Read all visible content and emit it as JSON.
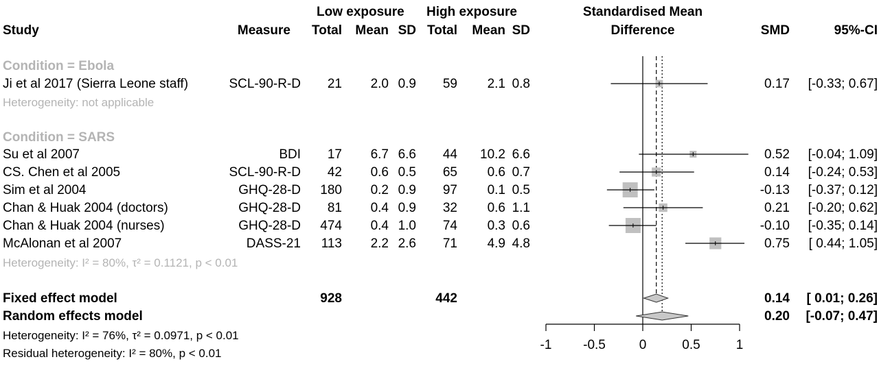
{
  "header": {
    "study": "Study",
    "measure": "Measure",
    "low_exposure": "Low exposure",
    "high_exposure": "High exposure",
    "total_low": "Total",
    "mean_low": "Mean",
    "sd_low": "SD",
    "total_high": "Total",
    "mean_high": "Mean",
    "sd_high": "SD",
    "smd_title_1": "Standardised Mean",
    "smd_title_2": "Difference",
    "smd": "SMD",
    "ci": "95%-CI"
  },
  "groups": [
    {
      "label": "Condition = Ebola",
      "heterogeneity": "Heterogeneity: not applicable",
      "studies": [
        {
          "study": "Ji et al 2017 (Sierra Leone staff)",
          "measure": "SCL-90-R-D",
          "n_low": "21",
          "mean_low": "2.0",
          "sd_low": "0.9",
          "n_high": "59",
          "mean_high": "2.1",
          "sd_high": "0.8",
          "smd_text": "0.17",
          "ci_text": "[-0.33; 0.67]"
        }
      ]
    },
    {
      "label": "Condition = SARS",
      "heterogeneity_prefix": "Heterogeneity: ",
      "heterogeneity_text": "I² = 80%, τ² = 0.1121, p < 0.01",
      "studies": [
        {
          "study": "Su et al 2007",
          "measure": "BDI",
          "n_low": "17",
          "mean_low": "6.7",
          "sd_low": "6.6",
          "n_high": "44",
          "mean_high": "10.2",
          "sd_high": "6.6",
          "smd_text": "0.52",
          "ci_text": "[-0.04; 1.09]"
        },
        {
          "study": "CS. Chen et al 2005",
          "measure": "SCL-90-R-D",
          "n_low": "42",
          "mean_low": "0.6",
          "sd_low": "0.5",
          "n_high": "65",
          "mean_high": "0.6",
          "sd_high": "0.7",
          "smd_text": "0.14",
          "ci_text": "[-0.24; 0.53]"
        },
        {
          "study": "Sim et al 2004",
          "measure": "GHQ-28-D",
          "n_low": "180",
          "mean_low": "0.2",
          "sd_low": "0.9",
          "n_high": "97",
          "mean_high": "0.1",
          "sd_high": "0.5",
          "smd_text": "-0.13",
          "ci_text": "[-0.37; 0.12]"
        },
        {
          "study": "Chan & Huak 2004 (doctors)",
          "measure": "GHQ-28-D",
          "n_low": "81",
          "mean_low": "0.4",
          "sd_low": "0.9",
          "n_high": "32",
          "mean_high": "0.6",
          "sd_high": "1.1",
          "smd_text": "0.21",
          "ci_text": "[-0.20; 0.62]"
        },
        {
          "study": "Chan & Huak 2004 (nurses)",
          "measure": "GHQ-28-D",
          "n_low": "474",
          "mean_low": "0.4",
          "sd_low": "1.0",
          "n_high": "74",
          "mean_high": "0.3",
          "sd_high": "0.6",
          "smd_text": "-0.10",
          "ci_text": "[-0.35; 0.14]"
        },
        {
          "study": "McAlonan et al 2007",
          "measure": "DASS-21",
          "n_low": "113",
          "mean_low": "2.2",
          "sd_low": "2.6",
          "n_high": "71",
          "mean_high": "4.9",
          "sd_high": "4.8",
          "smd_text": "0.75",
          "ci_text": "[ 0.44; 1.05]"
        }
      ]
    }
  ],
  "fixed": {
    "label": "Fixed effect model",
    "n_low": "928",
    "n_high": "442",
    "smd_text": "0.14",
    "ci_text": "[ 0.01; 0.26]"
  },
  "random": {
    "label": "Random effects model",
    "smd_text": "0.20",
    "ci_text": "[-0.07; 0.47]"
  },
  "overall_heterogeneity": {
    "prefix": "Heterogeneity: ",
    "text": "I² = 76%, τ² = 0.0971, p < 0.01"
  },
  "residual_heterogeneity": {
    "prefix": "Residual heterogeneity: ",
    "text": "I² = 80%, p < 0.01"
  },
  "chart_data": {
    "type": "forest",
    "xlim": [
      -1,
      1
    ],
    "xticks": [
      -1,
      -0.5,
      0,
      0.5,
      1
    ],
    "xtick_labels": [
      "-1",
      "-0.5",
      "0",
      "0.5",
      "1"
    ],
    "reference_line": 0,
    "fixed_line": 0.14,
    "random_line": 0.2,
    "studies": [
      {
        "name": "Ji et al 2017 (Sierra Leone staff)",
        "smd": 0.17,
        "lo": -0.33,
        "hi": 0.67,
        "weight": 0.3
      },
      {
        "name": "Su et al 2007",
        "smd": 0.52,
        "lo": -0.04,
        "hi": 1.09,
        "weight": 0.25
      },
      {
        "name": "CS. Chen et al 2005",
        "smd": 0.14,
        "lo": -0.24,
        "hi": 0.53,
        "weight": 0.45
      },
      {
        "name": "Sim et al 2004",
        "smd": -0.13,
        "lo": -0.37,
        "hi": 0.12,
        "weight": 1.0
      },
      {
        "name": "Chan & Huak 2004 (doctors)",
        "smd": 0.21,
        "lo": -0.2,
        "hi": 0.62,
        "weight": 0.4
      },
      {
        "name": "Chan & Huak 2004 (nurses)",
        "smd": -0.1,
        "lo": -0.35,
        "hi": 0.14,
        "weight": 1.0
      },
      {
        "name": "McAlonan et al 2007",
        "smd": 0.75,
        "lo": 0.44,
        "hi": 1.05,
        "weight": 0.7
      }
    ],
    "summaries": [
      {
        "name": "Fixed effect model",
        "smd": 0.14,
        "lo": 0.01,
        "hi": 0.26
      },
      {
        "name": "Random effects model",
        "smd": 0.2,
        "lo": -0.07,
        "hi": 0.47
      }
    ],
    "colors": {
      "box": "#c0c0c0",
      "diamond": "#c8c8c8",
      "line": "#000000",
      "subgroup_text": "#b4b4b4"
    }
  }
}
